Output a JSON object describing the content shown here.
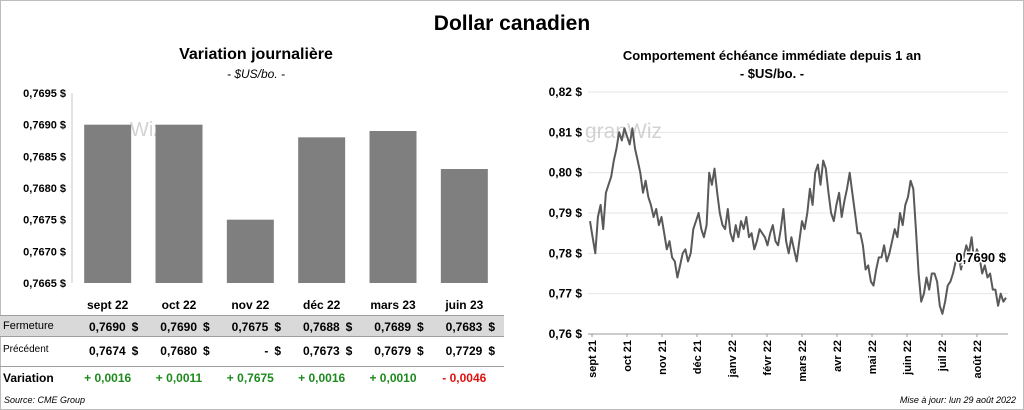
{
  "header": {
    "title": "Dollar canadien"
  },
  "footer": {
    "source": "Source: CME Group",
    "updated": "Mise à jour: lun 29 août 2022"
  },
  "watermark": "granWiz",
  "colors": {
    "bar": "#7f7f7f",
    "line": "#595959",
    "positive": "#1e8a1e",
    "negative": "#e01010",
    "table_shade": "#d9d9d9"
  },
  "chart_data": [
    {
      "type": "bar",
      "title": "Variation  journalière",
      "subtitle": "- $US/bo. -",
      "categories": [
        "sept 22",
        "oct 22",
        "nov 22",
        "déc 22",
        "mars 23",
        "juin 23"
      ],
      "values": [
        0.769,
        0.769,
        0.7675,
        0.7688,
        0.7689,
        0.7683
      ],
      "ylim": [
        0.7665,
        0.7695
      ],
      "yticks": [
        "0,7665 $",
        "0,7670 $",
        "0,7675 $",
        "0,7680 $",
        "0,7685 $",
        "0,7690 $",
        "0,7695 $"
      ],
      "table": {
        "rows": [
          {
            "label": "Fermeture",
            "values": [
              "0,7690",
              "0,7690",
              "0,7675",
              "0,7688",
              "0,7689",
              "0,7683"
            ],
            "suffix": "$"
          },
          {
            "label": "Précédent",
            "values": [
              "0,7674",
              "0,7680",
              "-",
              "0,7673",
              "0,7679",
              "0,7729"
            ],
            "suffix": "$"
          },
          {
            "label": "Variation",
            "values": [
              "+ 0,0016",
              "+ 0,0011",
              "+ 0,7675",
              "+ 0,0016",
              "+ 0,0010",
              "- 0,0046"
            ],
            "signs": [
              "pos",
              "pos",
              "pos",
              "pos",
              "pos",
              "neg"
            ]
          }
        ]
      }
    },
    {
      "type": "line",
      "title": "Comportement échéance immédiate depuis 1 an",
      "subtitle": "- $US/bo. -",
      "ylim": [
        0.76,
        0.82
      ],
      "yticks": [
        "0,76 $",
        "0,77 $",
        "0,78 $",
        "0,79 $",
        "0,80 $",
        "0,81 $",
        "0,82 $"
      ],
      "xticks": [
        "sept 21",
        "oct 21",
        "nov 21",
        "déc 21",
        "janv 22",
        "févr 22",
        "mars 22",
        "avr 22",
        "mai 22",
        "juin 22",
        "juil 22",
        "août 22"
      ],
      "last_label": "0,7690 $",
      "series": [
        {
          "values": [
            0.788,
            0.784,
            0.78,
            0.789,
            0.792,
            0.786,
            0.795,
            0.797,
            0.799,
            0.803,
            0.806,
            0.81,
            0.808,
            0.811,
            0.809,
            0.807,
            0.811,
            0.806,
            0.803,
            0.8,
            0.795,
            0.798,
            0.794,
            0.792,
            0.789,
            0.791,
            0.787,
            0.789,
            0.785,
            0.781,
            0.783,
            0.779,
            0.778,
            0.774,
            0.777,
            0.78,
            0.781,
            0.778,
            0.78,
            0.786,
            0.788,
            0.79,
            0.786,
            0.784,
            0.787,
            0.8,
            0.797,
            0.801,
            0.795,
            0.79,
            0.787,
            0.786,
            0.791,
            0.785,
            0.783,
            0.787,
            0.784,
            0.788,
            0.786,
            0.789,
            0.784,
            0.785,
            0.781,
            0.783,
            0.786,
            0.785,
            0.784,
            0.782,
            0.785,
            0.787,
            0.783,
            0.782,
            0.786,
            0.791,
            0.783,
            0.78,
            0.784,
            0.781,
            0.778,
            0.783,
            0.788,
            0.786,
            0.79,
            0.796,
            0.792,
            0.8,
            0.802,
            0.797,
            0.803,
            0.801,
            0.795,
            0.79,
            0.788,
            0.792,
            0.795,
            0.789,
            0.793,
            0.796,
            0.8,
            0.795,
            0.79,
            0.785,
            0.785,
            0.782,
            0.776,
            0.777,
            0.773,
            0.772,
            0.776,
            0.779,
            0.779,
            0.782,
            0.778,
            0.78,
            0.783,
            0.786,
            0.784,
            0.79,
            0.787,
            0.792,
            0.794,
            0.798,
            0.796,
            0.786,
            0.775,
            0.768,
            0.77,
            0.774,
            0.771,
            0.775,
            0.775,
            0.773,
            0.767,
            0.765,
            0.768,
            0.772,
            0.773,
            0.775,
            0.778,
            0.78,
            0.776,
            0.779,
            0.782,
            0.78,
            0.784,
            0.778,
            0.781,
            0.779,
            0.775,
            0.777,
            0.774,
            0.775,
            0.771,
            0.771,
            0.767,
            0.77,
            0.768,
            0.769
          ]
        }
      ]
    }
  ]
}
